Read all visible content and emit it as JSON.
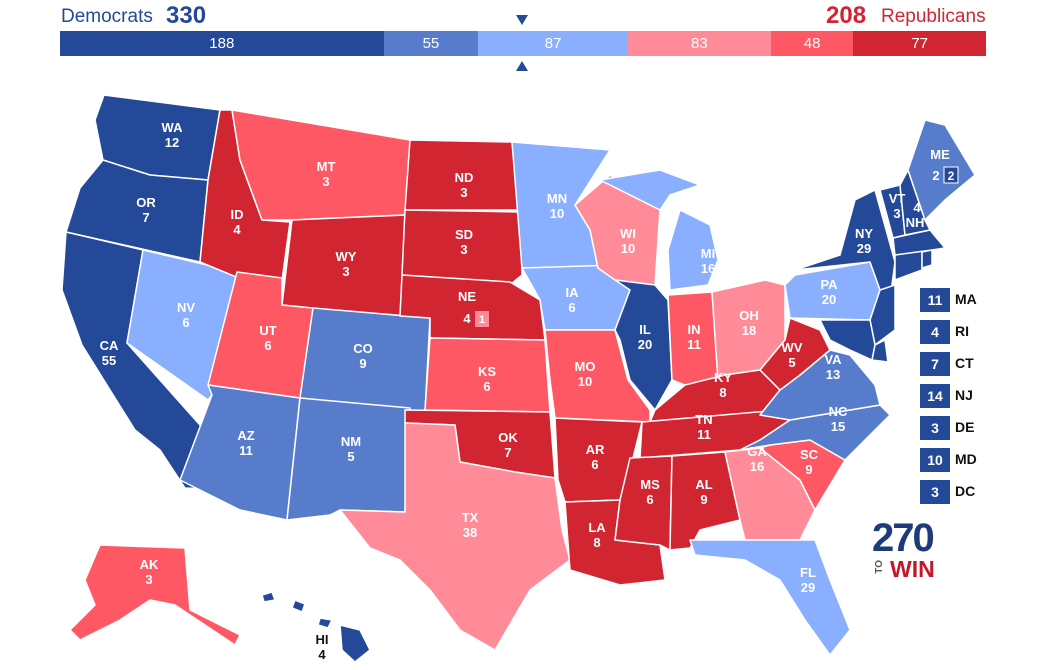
{
  "header": {
    "dem_label": "Democrats",
    "dem_total": "330",
    "rep_total": "208",
    "rep_label": "Republicans",
    "marker_color": "#244999"
  },
  "bar": [
    {
      "value": 188,
      "label": "188",
      "color": "#244999"
    },
    {
      "value": 55,
      "label": "55",
      "color": "#577ccc"
    },
    {
      "value": 87,
      "label": "87",
      "color": "#8aafff"
    },
    {
      "value": 83,
      "label": "83",
      "color": "#ff8b98"
    },
    {
      "value": 48,
      "label": "48",
      "color": "#ff5865"
    },
    {
      "value": 77,
      "label": "77",
      "color": "#d22532"
    }
  ],
  "colors": {
    "safe_d": "#244999",
    "likely_d": "#577ccc",
    "lean_d": "#8aafff",
    "lean_r": "#ff8b98",
    "likely_r": "#ff5865",
    "safe_r": "#d22532"
  },
  "states": {
    "WA": {
      "abbr": "WA",
      "ev": "12"
    },
    "OR": {
      "abbr": "OR",
      "ev": "7"
    },
    "CA": {
      "abbr": "CA",
      "ev": "55"
    },
    "NV": {
      "abbr": "NV",
      "ev": "6"
    },
    "ID": {
      "abbr": "ID",
      "ev": "4"
    },
    "MT": {
      "abbr": "MT",
      "ev": "3"
    },
    "WY": {
      "abbr": "WY",
      "ev": "3"
    },
    "UT": {
      "abbr": "UT",
      "ev": "6"
    },
    "AZ": {
      "abbr": "AZ",
      "ev": "11"
    },
    "CO": {
      "abbr": "CO",
      "ev": "9"
    },
    "NM": {
      "abbr": "NM",
      "ev": "5"
    },
    "ND": {
      "abbr": "ND",
      "ev": "3"
    },
    "SD": {
      "abbr": "SD",
      "ev": "3"
    },
    "NE": {
      "abbr": "NE",
      "ev": "4",
      "district": "1"
    },
    "KS": {
      "abbr": "KS",
      "ev": "6"
    },
    "OK": {
      "abbr": "OK",
      "ev": "7"
    },
    "TX": {
      "abbr": "TX",
      "ev": "38"
    },
    "MN": {
      "abbr": "MN",
      "ev": "10"
    },
    "IA": {
      "abbr": "IA",
      "ev": "6"
    },
    "MO": {
      "abbr": "MO",
      "ev": "10"
    },
    "AR": {
      "abbr": "AR",
      "ev": "6"
    },
    "LA": {
      "abbr": "LA",
      "ev": "8"
    },
    "WI": {
      "abbr": "WI",
      "ev": "10"
    },
    "IL": {
      "abbr": "IL",
      "ev": "20"
    },
    "MS": {
      "abbr": "MS",
      "ev": "6"
    },
    "MI": {
      "abbr": "MI",
      "ev": "16"
    },
    "IN": {
      "abbr": "IN",
      "ev": "11"
    },
    "KY": {
      "abbr": "KY",
      "ev": "8"
    },
    "TN": {
      "abbr": "TN",
      "ev": "11"
    },
    "AL": {
      "abbr": "AL",
      "ev": "9"
    },
    "OH": {
      "abbr": "OH",
      "ev": "18"
    },
    "WV": {
      "abbr": "WV",
      "ev": "5"
    },
    "VA": {
      "abbr": "VA",
      "ev": "13"
    },
    "NC": {
      "abbr": "NC",
      "ev": "15"
    },
    "SC": {
      "abbr": "SC",
      "ev": "9"
    },
    "GA": {
      "abbr": "GA",
      "ev": "16"
    },
    "FL": {
      "abbr": "FL",
      "ev": "29"
    },
    "PA": {
      "abbr": "PA",
      "ev": "20"
    },
    "NY": {
      "abbr": "NY",
      "ev": "29"
    },
    "VT": {
      "abbr": "VT",
      "ev": "3"
    },
    "NH": {
      "abbr": "NH",
      "ev": "4"
    },
    "ME": {
      "abbr": "ME",
      "ev": "2",
      "district": "2"
    },
    "AK": {
      "abbr": "AK",
      "ev": "3"
    },
    "HI": {
      "abbr": "HI",
      "ev": "4"
    }
  },
  "small_states": [
    {
      "abbr": "MA",
      "ev": "11"
    },
    {
      "abbr": "RI",
      "ev": "4"
    },
    {
      "abbr": "CT",
      "ev": "7"
    },
    {
      "abbr": "NJ",
      "ev": "14"
    },
    {
      "abbr": "DE",
      "ev": "3"
    },
    {
      "abbr": "MD",
      "ev": "10"
    },
    {
      "abbr": "DC",
      "ev": "3"
    }
  ],
  "logo": {
    "number": "270",
    "to": "TO",
    "win": "WIN"
  }
}
